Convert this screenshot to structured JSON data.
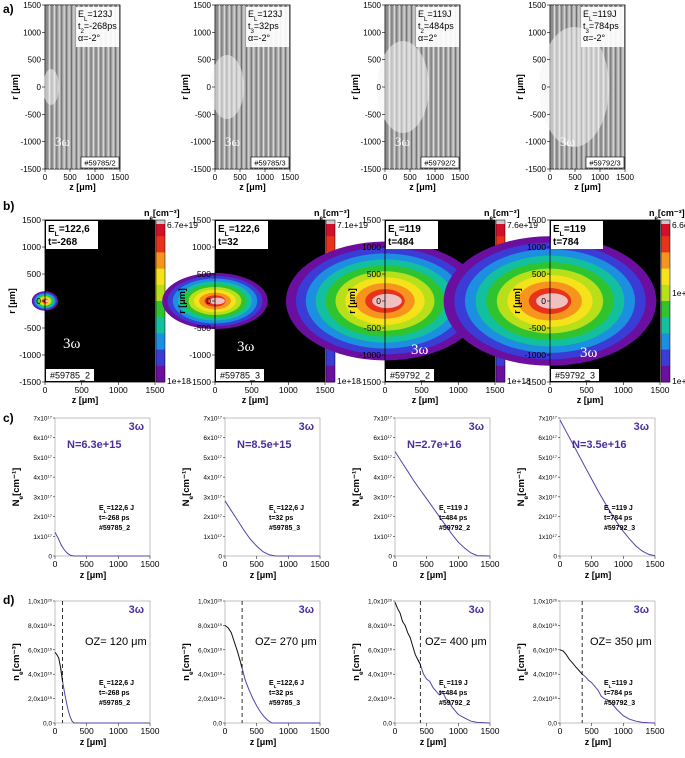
{
  "row_labels": [
    "a)",
    "b)",
    "c)",
    "d)"
  ],
  "row_a": {
    "type": "interferogram",
    "xlabel": "z [μm]",
    "ylabel": "r [μm]",
    "xticks": [
      "0",
      "500",
      "1000",
      "1500"
    ],
    "yticks": [
      "1500",
      "1000",
      "500",
      "0",
      "-500",
      "-1000",
      "-1500"
    ],
    "beam_label": "3ω",
    "panels": [
      {
        "lines": [
          "E",
          "=123J",
          "t",
          "=-268ps",
          "α=-2°"
        ],
        "subs": [
          "L",
          "2"
        ],
        "shot": "#59785/2"
      },
      {
        "lines": [
          "E",
          "=123J",
          "t",
          "=32ps",
          "α=-2°"
        ],
        "subs": [
          "L",
          "3"
        ],
        "shot": "#59785/3"
      },
      {
        "lines": [
          "E",
          "=119J",
          "t",
          "=484ps",
          "α=2°"
        ],
        "subs": [
          "L",
          "2"
        ],
        "shot": "#59792/2"
      },
      {
        "lines": [
          "E",
          "=119J",
          "t",
          "=784ps",
          "α=-2°"
        ],
        "subs": [
          "L",
          "3"
        ],
        "shot": "#59792/3"
      }
    ]
  },
  "row_b": {
    "type": "heatmap",
    "xlabel": "z [μm]",
    "ylabel": "r [μm]",
    "xticks": [
      "0",
      "500",
      "1000",
      "1500"
    ],
    "yticks": [
      "1500",
      "1000",
      "500",
      "0",
      "-500",
      "-1000",
      "-1500"
    ],
    "colorbar_title": "n",
    "colorbar_sub": "e",
    "colorbar_unit": "[cm⁻³]",
    "colorbar_mid": "1e+19",
    "colorbar_min": "1e+18",
    "beam_label": "3ω",
    "colors": [
      "#6a0fa0",
      "#3b3bd6",
      "#1c8fe0",
      "#12c0a0",
      "#2fc42f",
      "#b8e01a",
      "#f6e21a",
      "#f7941d",
      "#e8331c",
      "#d40f2a"
    ],
    "panels": [
      {
        "el": "E",
        "el_sub": "L",
        "el_val": "=122,6",
        "t": "t=-268",
        "cb_max": "6.7e+19",
        "shot": "#59785_2",
        "extent_um": 180,
        "half_width_um": 180
      },
      {
        "el": "E",
        "el_sub": "L",
        "el_val": "=122,6",
        "t": "t=32",
        "cb_max": "7.1e+19",
        "shot": "#59785_3",
        "extent_um": 720,
        "half_width_um": 520
      },
      {
        "el": "E",
        "el_sub": "L",
        "el_val": "=119",
        "t": "t=484",
        "cb_max": "7.6e+19",
        "shot": "#59792_2",
        "extent_um": 1350,
        "half_width_um": 1100
      },
      {
        "el": "E",
        "el_sub": "L",
        "el_val": "=119",
        "t": "t=784",
        "cb_max": "6.6e+19",
        "shot": "#59792_3",
        "extent_um": 1450,
        "half_width_um": 1200
      }
    ]
  },
  "chart_data": [
    {
      "type": "line",
      "row": "c",
      "xlabel": "z [μm]",
      "ylabel": "N",
      "ylabel_sub": "e",
      "ylabel_unit": "[cm⁻¹]",
      "xticks": [
        0,
        500,
        1000,
        1500
      ],
      "yticks": [
        "0",
        "1x10",
        "2x10",
        "3x10",
        "4x10",
        "5x10",
        "6x10",
        "7x10"
      ],
      "ytick_exp": "17",
      "ylim": [
        0,
        7e+17
      ],
      "xlim": [
        0,
        1500
      ],
      "beam_label": "3ω",
      "series": [
        {
          "label": "N=6.3e+15",
          "el": "E",
          "el_sub": "L",
          "el_val": "=122,6 J",
          "t": "t=-268 ps",
          "shot": "#59785_2",
          "x": [
            0,
            50,
            100,
            150,
            200,
            250,
            300,
            400,
            1500
          ],
          "y": [
            1.2e+17,
            9e+16,
            5.5e+16,
            3e+16,
            1.2e+16,
            3000000000000000.0,
            0,
            0,
            0
          ]
        },
        {
          "label": "N=8.5e+15",
          "el": "E",
          "el_sub": "L",
          "el_val": "=122,6 J",
          "t": "t=32 ps",
          "shot": "#59785_3",
          "x": [
            0,
            100,
            200,
            300,
            400,
            500,
            600,
            700,
            800,
            1500
          ],
          "y": [
            2.8e+17,
            2.3e+17,
            1.8e+17,
            1.3e+17,
            8.5e+16,
            5e+16,
            2.2e+16,
            6000000000000000.0,
            0,
            0
          ]
        },
        {
          "label": "N=2.7e+16",
          "el": "E",
          "el_sub": "L",
          "el_val": "=119 J",
          "t": "t=484 ps",
          "shot": "#59792_2",
          "x": [
            0,
            100,
            200,
            300,
            400,
            500,
            600,
            700,
            800,
            900,
            1000,
            1100,
            1200,
            1300,
            1500
          ],
          "y": [
            5.3e+17,
            4.8e+17,
            4.3e+17,
            3.8e+17,
            3.35e+17,
            2.9e+17,
            2.45e+17,
            2e+17,
            1.55e+17,
            1.1e+17,
            7e+16,
            4e+16,
            1.5e+16,
            2000000000000000.0,
            0
          ]
        },
        {
          "label": "N=3.5e+16",
          "el": "E",
          "el_sub": "L",
          "el_val": "=119 J",
          "t": "t=784 ps",
          "shot": "#59792_3",
          "x": [
            0,
            100,
            200,
            300,
            400,
            500,
            600,
            700,
            800,
            900,
            1000,
            1100,
            1200,
            1300,
            1400,
            1500
          ],
          "y": [
            6.9e+17,
            6.3e+17,
            5.7e+17,
            5.1e+17,
            4.5e+17,
            3.9e+17,
            3.3e+17,
            2.75e+17,
            2.2e+17,
            1.7e+17,
            1.25e+17,
            8.5e+16,
            5e+16,
            2.5e+16,
            8000000000000000.0,
            1000000000000000.0
          ]
        }
      ]
    },
    {
      "type": "line",
      "row": "d",
      "xlabel": "z [μm]",
      "ylabel": "n",
      "ylabel_sub": "e",
      "ylabel_unit": "[cm⁻³]",
      "xticks": [
        0,
        500,
        1000,
        1500
      ],
      "yticks": [
        "0,0",
        "2,0x10",
        "4,0x10",
        "6,0x10",
        "8,0x10",
        "1,0x10"
      ],
      "ytick_exps": [
        "",
        "19",
        "19",
        "19",
        "19",
        "20"
      ],
      "ylim": [
        0,
        1e+20
      ],
      "xlim": [
        0,
        1500
      ],
      "beam_label": "3ω",
      "series": [
        {
          "label": "OZ= 120 μm",
          "oz": 120,
          "el": "E",
          "el_sub": "L",
          "el_val": "=122,6 J",
          "t": "t=-268 ps",
          "shot": "#59785_2",
          "x": [
            0,
            30,
            60,
            90,
            120,
            150,
            180,
            210,
            240,
            270,
            300,
            1500
          ],
          "y": [
            5.8e+19,
            5.6e+19,
            5.3e+19,
            4.5e+19,
            3.4e+19,
            2.5e+19,
            1.7e+19,
            1e+19,
            5e+18,
            1.5e+18,
            0,
            0
          ]
        },
        {
          "label": "OZ= 270 μm",
          "oz": 270,
          "el": "E",
          "el_sub": "L",
          "el_val": "=122,6 J",
          "t": "t=32 ps",
          "shot": "#59785_3",
          "x": [
            0,
            50,
            100,
            150,
            200,
            250,
            270,
            320,
            380,
            440,
            500,
            560,
            620,
            680,
            740,
            1500
          ],
          "y": [
            8e+19,
            7.8e+19,
            7.4e+19,
            6.6e+19,
            5.8e+19,
            4.9e+19,
            4.5e+19,
            3.5e+19,
            2.7e+19,
            2e+19,
            1.4e+19,
            9e+18,
            5e+18,
            2e+18,
            0,
            0
          ]
        },
        {
          "label": "OZ= 400 μm",
          "oz": 400,
          "el": "E",
          "el_sub": "L",
          "el_val": "=119 J",
          "t": "t=484 ps",
          "shot": "#59792_2",
          "x": [
            0,
            40,
            80,
            120,
            160,
            200,
            240,
            280,
            320,
            360,
            400,
            450,
            500,
            550,
            600,
            650,
            700,
            750,
            800,
            850,
            900,
            950,
            1000,
            1100,
            1200,
            1300,
            1500
          ],
          "y": [
            9.9e+19,
            9.4e+19,
            9e+19,
            8.3e+19,
            8e+19,
            7.4e+19,
            7e+19,
            6.3e+19,
            5.6e+19,
            5.2e+19,
            4.8e+19,
            4e+19,
            3.6e+19,
            3.4e+19,
            2.9e+19,
            2.6e+19,
            2.3e+19,
            2.6e+19,
            2e+19,
            1.8e+19,
            1.3e+19,
            1e+19,
            7e+18,
            4e+18,
            1.5e+18,
            5e+17,
            0
          ]
        },
        {
          "label": "OZ= 350 μm",
          "oz": 350,
          "el": "E",
          "el_sub": "L",
          "el_val": "=119 J",
          "t": "t=784 ps",
          "shot": "#59792_3",
          "x": [
            0,
            50,
            100,
            150,
            200,
            250,
            300,
            350,
            400,
            450,
            500,
            550,
            600,
            650,
            700,
            750,
            800,
            850,
            900,
            1000,
            1100,
            1200,
            1300,
            1400,
            1500
          ],
          "y": [
            6e+19,
            5.9e+19,
            5.6e+19,
            5.2e+19,
            4.9e+19,
            4.6e+19,
            4.3e+19,
            4e+19,
            3.8e+19,
            3.5e+19,
            3.3e+19,
            3e+19,
            2.7e+19,
            2.2e+19,
            2e+19,
            1.9e+19,
            1.7e+19,
            1.4e+19,
            1.1e+19,
            6e+18,
            3e+18,
            1.5e+18,
            5e+17,
            2e+17,
            0
          ]
        }
      ]
    }
  ],
  "colors": {
    "curve": "#5a3fa8",
    "curve_dark": "#111111",
    "beam_label": "#4b2e9c",
    "background": "#ffffff"
  }
}
